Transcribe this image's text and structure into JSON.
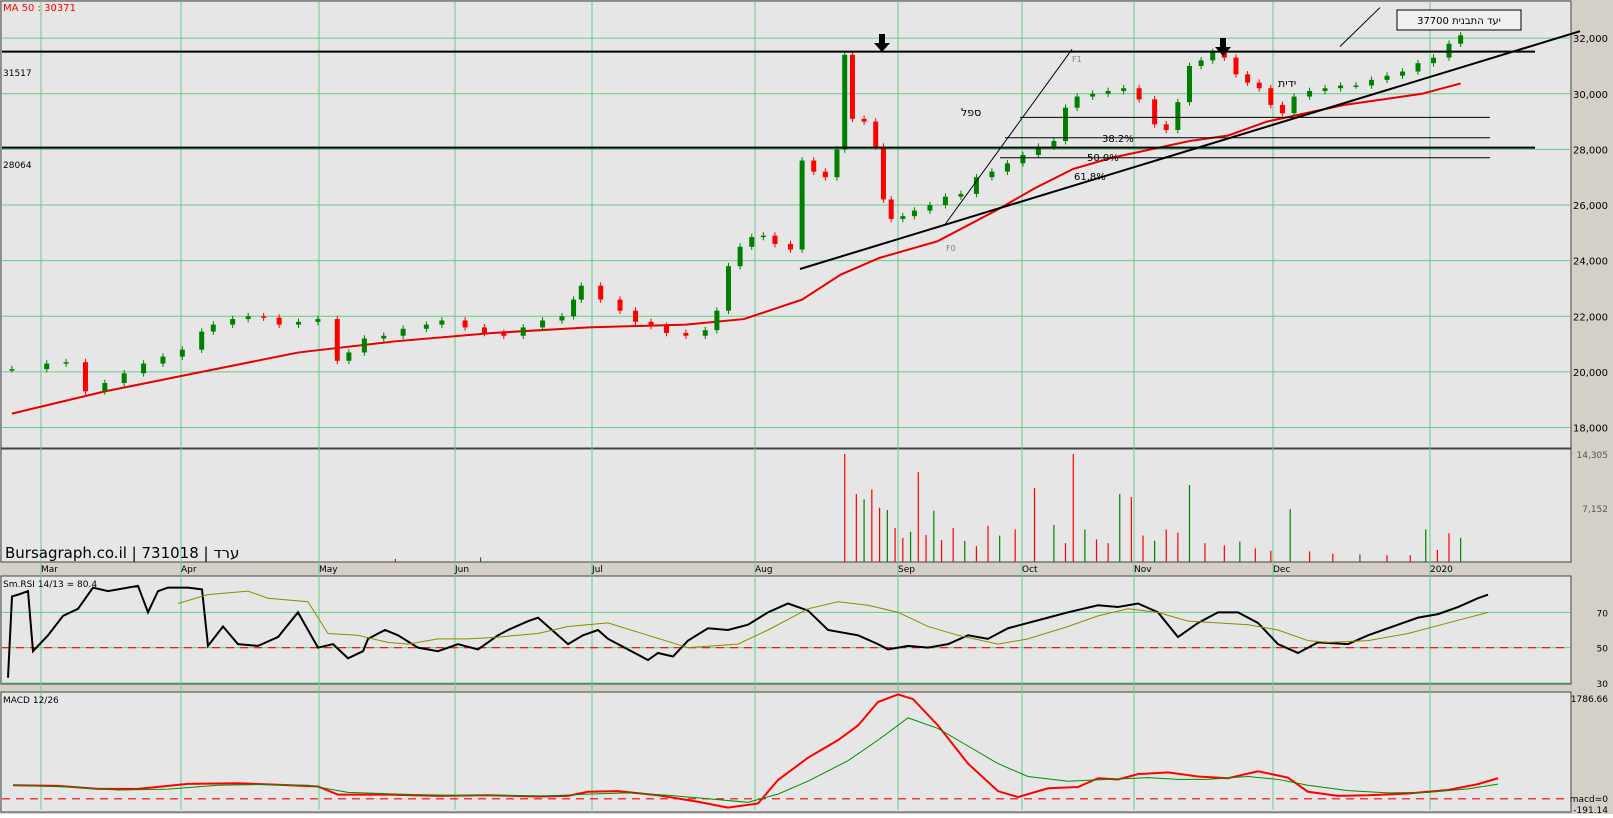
{
  "colors": {
    "panel_bg": "#e6e6e6",
    "outer_bg": "#d4d0c8",
    "grid": "#66cc88",
    "up_candle": "#008000",
    "down_candle": "#ff0000",
    "ma_line": "#e60000",
    "rsi_line": "#000000",
    "rsi_signal": "#8b8b00",
    "macd_line": "#ff0000",
    "macd_signal": "#009000",
    "dashed": "#ff0000",
    "text_red": "#ff0000"
  },
  "header": {
    "ma_label": "MA 50 : 30371",
    "brand": "Bursagraph.co.il | 731018 | ערד"
  },
  "chart_data": [
    {
      "type": "candlestick",
      "panel": "price",
      "x_ticks": [
        "Mar",
        "Apr",
        "May",
        "Jun",
        "Jul",
        "Aug",
        "Sep",
        "Oct",
        "Nov",
        "Dec",
        "2020"
      ],
      "y_ticks": [
        "18,000",
        "20,000",
        "22,000",
        "24,000",
        "26,000",
        "28,000",
        "30,000",
        "32,000"
      ],
      "ylim": [
        17300,
        33300
      ],
      "ohlc_close_approx": [
        [
          1,
          20100
        ],
        [
          10,
          20300
        ],
        [
          15,
          20350
        ],
        [
          20,
          19300
        ],
        [
          25,
          19600
        ],
        [
          30,
          19950
        ],
        [
          35,
          20300
        ],
        [
          40,
          20550
        ],
        [
          45,
          20800
        ],
        [
          50,
          21450
        ],
        [
          53,
          21700
        ],
        [
          58,
          21900
        ],
        [
          62,
          22000
        ],
        [
          66,
          21950
        ],
        [
          70,
          21700
        ],
        [
          75,
          21800
        ],
        [
          80,
          21900
        ],
        [
          85,
          20400
        ],
        [
          88,
          20700
        ],
        [
          92,
          21200
        ],
        [
          97,
          21300
        ],
        [
          102,
          21550
        ],
        [
          108,
          21700
        ],
        [
          112,
          21850
        ],
        [
          118,
          21600
        ],
        [
          123,
          21400
        ],
        [
          128,
          21300
        ],
        [
          133,
          21600
        ],
        [
          138,
          21850
        ],
        [
          143,
          22000
        ],
        [
          146,
          22600
        ],
        [
          148,
          23100
        ],
        [
          153,
          22600
        ],
        [
          158,
          22200
        ],
        [
          162,
          21800
        ],
        [
          166,
          21650
        ],
        [
          170,
          21400
        ],
        [
          175,
          21300
        ],
        [
          180,
          21500
        ],
        [
          183,
          22200
        ],
        [
          186,
          23800
        ],
        [
          189,
          24500
        ],
        [
          192,
          24850
        ],
        [
          195,
          24900
        ],
        [
          198,
          24600
        ],
        [
          202,
          24400
        ],
        [
          205,
          27600
        ],
        [
          208,
          27200
        ],
        [
          211,
          27000
        ],
        [
          214,
          28000
        ],
        [
          216,
          31400
        ],
        [
          218,
          29100
        ],
        [
          221,
          29000
        ],
        [
          224,
          28100
        ],
        [
          226,
          26200
        ],
        [
          228,
          25500
        ],
        [
          231,
          25600
        ],
        [
          234,
          25800
        ],
        [
          238,
          26000
        ],
        [
          242,
          26300
        ],
        [
          246,
          26400
        ],
        [
          250,
          27000
        ],
        [
          254,
          27200
        ],
        [
          258,
          27500
        ],
        [
          262,
          27800
        ],
        [
          266,
          28100
        ],
        [
          270,
          28300
        ],
        [
          273,
          29500
        ],
        [
          276,
          29900
        ],
        [
          280,
          30000
        ],
        [
          284,
          30100
        ],
        [
          288,
          30200
        ],
        [
          292,
          29800
        ],
        [
          296,
          28900
        ],
        [
          299,
          28700
        ],
        [
          302,
          29700
        ],
        [
          305,
          31000
        ],
        [
          308,
          31200
        ],
        [
          311,
          31500
        ],
        [
          314,
          31300
        ],
        [
          317,
          30700
        ],
        [
          320,
          30400
        ],
        [
          323,
          30200
        ],
        [
          326,
          29600
        ],
        [
          329,
          29300
        ],
        [
          332,
          29900
        ],
        [
          336,
          30100
        ],
        [
          340,
          30200
        ],
        [
          344,
          30300
        ],
        [
          348,
          30300
        ],
        [
          352,
          30500
        ],
        [
          356,
          30650
        ],
        [
          360,
          30800
        ],
        [
          364,
          31100
        ],
        [
          368,
          31300
        ],
        [
          372,
          31800
        ],
        [
          375,
          32100
        ]
      ],
      "ma50_approx": [
        [
          1,
          18500
        ],
        [
          25,
          19300
        ],
        [
          50,
          20000
        ],
        [
          75,
          20700
        ],
        [
          100,
          21100
        ],
        [
          125,
          21400
        ],
        [
          150,
          21600
        ],
        [
          175,
          21700
        ],
        [
          190,
          21900
        ],
        [
          205,
          22600
        ],
        [
          215,
          23500
        ],
        [
          225,
          24100
        ],
        [
          240,
          24700
        ],
        [
          255,
          25800
        ],
        [
          265,
          26600
        ],
        [
          275,
          27300
        ],
        [
          285,
          27700
        ],
        [
          295,
          28000
        ],
        [
          305,
          28300
        ],
        [
          315,
          28500
        ],
        [
          325,
          29000
        ],
        [
          335,
          29300
        ],
        [
          345,
          29600
        ],
        [
          355,
          29800
        ],
        [
          365,
          30000
        ],
        [
          375,
          30371
        ]
      ],
      "horizontal_levels": [
        {
          "label": "31517",
          "value": 31517
        },
        {
          "label": "28064",
          "value": 28064
        }
      ],
      "fib_levels": [
        {
          "label": "38.2%",
          "value": 29150
        },
        {
          "label": "50.0%",
          "value": 28420
        },
        {
          "label": "61.8%",
          "value": 27700
        }
      ],
      "annotations": {
        "target_box": "יעד התבנית 37700",
        "cup": "ספל",
        "handle": "ידית",
        "f1": "F1",
        "f0": "F0",
        "fib_382": "38.2%",
        "fib_500": "50.0%",
        "fib_618": "61.8%",
        "level_high": "31517",
        "level_low": "28064"
      }
    },
    {
      "type": "bar",
      "panel": "volume",
      "y_ticks": [
        "14,305",
        "7,152"
      ],
      "ylim": [
        0,
        14305
      ],
      "values_approx": [
        [
          100,
          400
        ],
        [
          122,
          600
        ],
        [
          216,
          14305
        ],
        [
          219,
          9000
        ],
        [
          221,
          8300
        ],
        [
          223,
          9600
        ],
        [
          225,
          7200
        ],
        [
          227,
          6900
        ],
        [
          229,
          4500
        ],
        [
          231,
          3200
        ],
        [
          233,
          4000
        ],
        [
          235,
          11900
        ],
        [
          237,
          3600
        ],
        [
          239,
          6800
        ],
        [
          241,
          2900
        ],
        [
          244,
          4500
        ],
        [
          247,
          2800
        ],
        [
          250,
          2100
        ],
        [
          253,
          4800
        ],
        [
          256,
          3500
        ],
        [
          260,
          4300
        ],
        [
          265,
          9800
        ],
        [
          270,
          4900
        ],
        [
          273,
          2500
        ],
        [
          275,
          14305
        ],
        [
          278,
          4300
        ],
        [
          281,
          3000
        ],
        [
          284,
          2500
        ],
        [
          287,
          9000
        ],
        [
          290,
          8600
        ],
        [
          293,
          3500
        ],
        [
          296,
          2800
        ],
        [
          299,
          4300
        ],
        [
          302,
          3900
        ],
        [
          305,
          10200
        ],
        [
          309,
          2500
        ],
        [
          314,
          2200
        ],
        [
          318,
          2700
        ],
        [
          322,
          1800
        ],
        [
          326,
          1500
        ],
        [
          331,
          7000
        ],
        [
          336,
          1400
        ],
        [
          342,
          1100
        ],
        [
          349,
          1000
        ],
        [
          356,
          900
        ],
        [
          362,
          900
        ],
        [
          366,
          4300
        ],
        [
          369,
          1600
        ],
        [
          372,
          3800
        ],
        [
          375,
          3200
        ]
      ]
    },
    {
      "type": "line",
      "panel": "rsi",
      "label": "Sm.RSI 14/13 = 80.4",
      "y_ticks": [
        "70",
        "50",
        "30"
      ],
      "ylim": [
        30,
        90
      ]
    },
    {
      "type": "line",
      "panel": "macd",
      "label": "MACD 12/26",
      "y_ticks": [
        "1786.66",
        "macd=0",
        "-191.14"
      ],
      "ylim": [
        -191.14,
        1786.66
      ]
    }
  ]
}
